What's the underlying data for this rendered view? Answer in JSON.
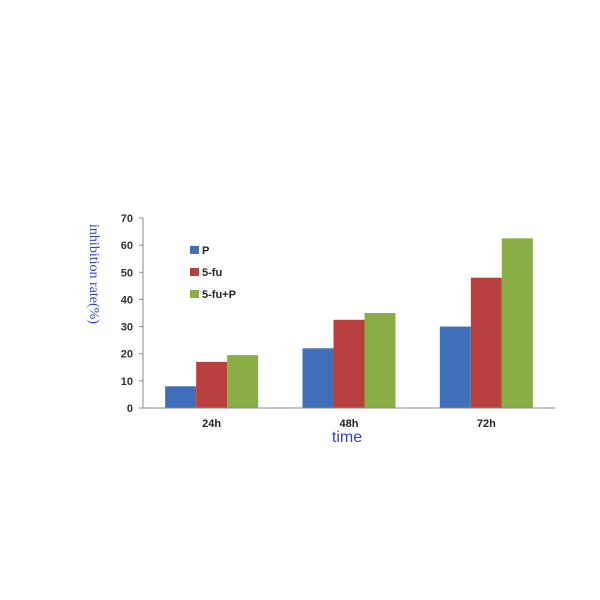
{
  "chart_data": {
    "type": "bar",
    "categories": [
      "24h",
      "48h",
      "72h"
    ],
    "series": [
      {
        "name": "P",
        "values": [
          8,
          22,
          30
        ],
        "color": "#3f6fb8"
      },
      {
        "name": "5-fu",
        "values": [
          17,
          32.5,
          48
        ],
        "color": "#b8413f"
      },
      {
        "name": "5-fu+P",
        "values": [
          19.5,
          35,
          62.5
        ],
        "color": "#8aae46"
      }
    ],
    "xlabel": "time",
    "ylabel": "inhibition rate(%)",
    "ylim": [
      0,
      70
    ],
    "yticks": [
      "0",
      "10",
      "20",
      "30",
      "40",
      "50",
      "60",
      "70"
    ],
    "grid": false,
    "legend_position": "top-left"
  }
}
